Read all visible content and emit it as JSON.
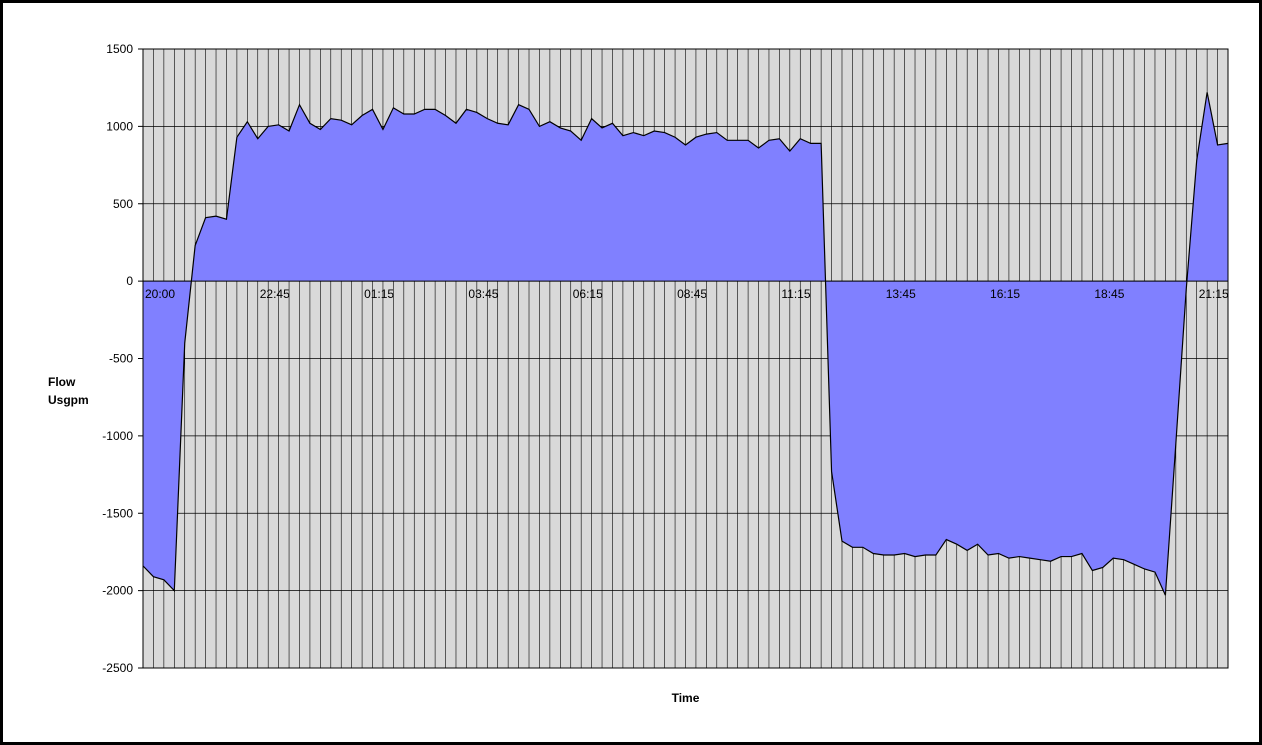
{
  "chart_data": {
    "type": "area",
    "title": "",
    "xlabel": "Time",
    "ylabel_lines": [
      "Flow",
      "Usgpm"
    ],
    "ylim": [
      -2500,
      1500
    ],
    "yticks": [
      1500,
      1000,
      500,
      0,
      -500,
      -1000,
      -1500,
      -2000,
      -2500
    ],
    "x_tick_labels": [
      "20:00",
      "22:45",
      "01:15",
      "03:45",
      "06:15",
      "08:45",
      "11:15",
      "13:45",
      "16:15",
      "18:45",
      "21:15"
    ],
    "x_tick_label_index": [
      0,
      11,
      21,
      31,
      41,
      51,
      61,
      71,
      81,
      91,
      101
    ],
    "grid": {
      "vertical": true,
      "horizontal": true
    },
    "colors": {
      "fill": "#8080FF",
      "line": "#000000",
      "plot_bg": "#D9D9D9",
      "grid": "#000000"
    },
    "series": [
      {
        "values": [
          -1840,
          -1910,
          -1930,
          -2000,
          -400,
          230,
          410,
          420,
          400,
          930,
          1030,
          920,
          1000,
          1010,
          970,
          1140,
          1020,
          980,
          1050,
          1040,
          1010,
          1070,
          1110,
          980,
          1120,
          1080,
          1080,
          1110,
          1110,
          1070,
          1020,
          1110,
          1090,
          1050,
          1020,
          1010,
          1140,
          1110,
          1000,
          1030,
          990,
          970,
          910,
          1050,
          990,
          1020,
          940,
          960,
          940,
          970,
          960,
          930,
          880,
          930,
          950,
          960,
          910,
          910,
          910,
          860,
          910,
          920,
          840,
          920,
          890,
          890,
          -1230,
          -1680,
          -1720,
          -1720,
          -1760,
          -1770,
          -1770,
          -1760,
          -1780,
          -1770,
          -1770,
          -1670,
          -1700,
          -1740,
          -1700,
          -1770,
          -1760,
          -1790,
          -1780,
          -1790,
          -1800,
          -1810,
          -1780,
          -1780,
          -1760,
          -1870,
          -1850,
          -1790,
          -1800,
          -1830,
          -1860,
          -1880,
          -2030,
          -1050,
          -50,
          780,
          1220,
          880,
          890
        ]
      }
    ]
  }
}
